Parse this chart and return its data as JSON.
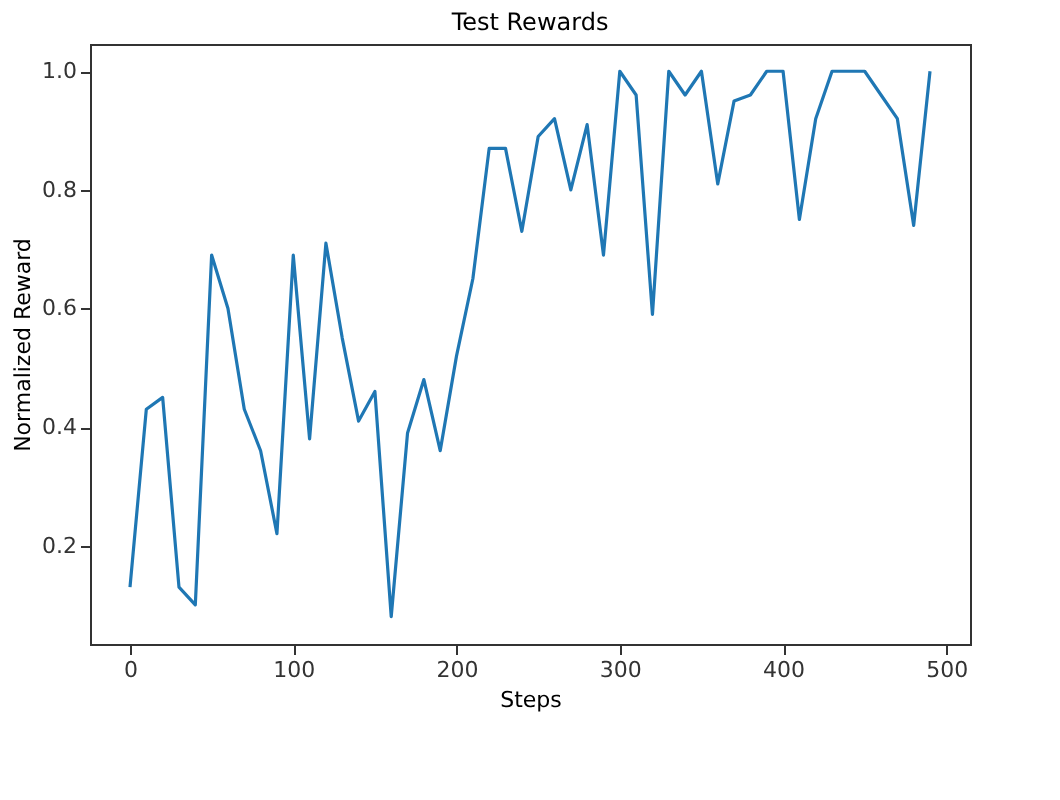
{
  "chart_data": {
    "type": "line",
    "title": "Test Rewards",
    "xlabel": "Steps",
    "ylabel": "Normalized Reward",
    "x": [
      0,
      10,
      20,
      30,
      40,
      50,
      60,
      70,
      80,
      90,
      100,
      110,
      120,
      130,
      140,
      150,
      160,
      170,
      180,
      190,
      200,
      210,
      220,
      230,
      240,
      250,
      260,
      270,
      280,
      290,
      300,
      310,
      320,
      330,
      340,
      350,
      360,
      370,
      380,
      390,
      400,
      410,
      420,
      430,
      440,
      450,
      460,
      470,
      480,
      490
    ],
    "series": [
      {
        "color": "#1f77b4",
        "values": [
          0.13,
          0.43,
          0.45,
          0.13,
          0.1,
          0.69,
          0.6,
          0.43,
          0.36,
          0.22,
          0.69,
          0.38,
          0.71,
          0.55,
          0.41,
          0.46,
          0.08,
          0.39,
          0.48,
          0.36,
          0.52,
          0.65,
          0.87,
          0.87,
          0.73,
          0.89,
          0.92,
          0.8,
          0.91,
          0.69,
          1.0,
          0.96,
          0.59,
          1.0,
          0.96,
          1.0,
          0.81,
          0.95,
          0.96,
          1.0,
          1.0,
          0.75,
          0.92,
          1.0,
          1.0,
          1.0,
          0.96,
          0.92,
          0.74,
          1.0
        ]
      }
    ],
    "xlim": [
      -24.5,
      514.5
    ],
    "ylim": [
      0.034,
      1.046
    ],
    "xticks": [
      0,
      100,
      200,
      300,
      400,
      500
    ],
    "yticks": [
      0.2,
      0.4,
      0.6,
      0.8,
      {
        "value": 1.0,
        "label": "1.0"
      }
    ],
    "grid": false,
    "line_style": "solid",
    "marker": "none"
  }
}
